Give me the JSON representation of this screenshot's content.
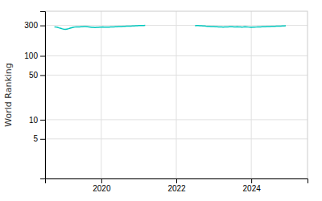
{
  "chart_data": {
    "type": "line",
    "ylabel": "World Ranking",
    "log": "y",
    "grid": true,
    "xlim": [
      2018.5,
      2025.5
    ],
    "ylim": [
      1.2,
      500
    ],
    "xticks": [
      2020,
      2022,
      2024
    ],
    "yticks": [
      5,
      10,
      50,
      100,
      300
    ],
    "series": [
      {
        "color": "#00c8be",
        "x": [
          2018.75,
          2018.79,
          2018.83,
          2018.87,
          2018.92,
          2018.96,
          2019.0,
          2019.04,
          2019.08,
          2019.13,
          2019.17,
          2019.21,
          2019.25,
          2019.29,
          2019.33,
          2019.38,
          2019.42,
          2019.46,
          2019.5,
          2019.54,
          2019.58,
          2019.63,
          2019.67,
          2019.71,
          2019.75,
          2019.79,
          2019.83,
          2019.88,
          2019.92,
          2019.96,
          2020.0,
          2020.04,
          2020.08,
          2020.13,
          2020.17,
          2020.21,
          2020.25,
          2020.29,
          2020.33,
          2020.38,
          2020.42,
          2020.46,
          2020.5,
          2020.54,
          2020.58,
          2020.63,
          2020.67,
          2020.71,
          2020.75,
          2020.79,
          2020.83,
          2020.88,
          2020.92,
          2020.96,
          2021.0,
          2021.04,
          2021.08,
          2021.13,
          2021.17
        ],
        "values": [
          285,
          283,
          280,
          275,
          270,
          265,
          262,
          260,
          263,
          267,
          272,
          276,
          280,
          283,
          284,
          285,
          285,
          286,
          287,
          288,
          288,
          286,
          284,
          282,
          280,
          279,
          278,
          279,
          280,
          281,
          282,
          283,
          282,
          282,
          283,
          283,
          284,
          284,
          285,
          286,
          287,
          288,
          288,
          289,
          290,
          291,
          292,
          292,
          292,
          293,
          294,
          295,
          296,
          297,
          298,
          298,
          299,
          299,
          300
        ]
      },
      {
        "color": "#00c8be",
        "x": [
          2022.5,
          2022.54,
          2022.58,
          2022.63,
          2022.67,
          2022.71,
          2022.75,
          2022.79,
          2022.83,
          2022.88,
          2022.92,
          2022.96,
          2023.0,
          2023.04,
          2023.08,
          2023.13,
          2023.17,
          2023.21,
          2023.25,
          2023.29,
          2023.33,
          2023.38,
          2023.42,
          2023.46,
          2023.5,
          2023.54,
          2023.58,
          2023.63,
          2023.67,
          2023.71,
          2023.75,
          2023.79,
          2023.83,
          2023.88,
          2023.92,
          2023.96,
          2024.0,
          2024.04,
          2024.08,
          2024.13,
          2024.17,
          2024.21,
          2024.25,
          2024.29,
          2024.33,
          2024.38,
          2024.42,
          2024.46,
          2024.5,
          2024.54,
          2024.58,
          2024.63,
          2024.67,
          2024.71,
          2024.75,
          2024.79,
          2024.83,
          2024.88,
          2024.92
        ],
        "values": [
          297,
          298,
          298,
          297,
          296,
          295,
          294,
          292,
          291,
          290,
          289,
          288,
          288,
          287,
          286,
          285,
          284,
          284,
          283,
          284,
          285,
          285,
          286,
          286,
          286,
          285,
          285,
          286,
          285,
          284,
          283,
          284,
          287,
          285,
          283,
          281,
          280,
          281,
          282,
          283,
          284,
          285,
          285,
          286,
          287,
          287,
          288,
          288,
          289,
          290,
          290,
          291,
          292,
          292,
          293,
          293,
          294,
          295,
          296
        ]
      }
    ]
  }
}
